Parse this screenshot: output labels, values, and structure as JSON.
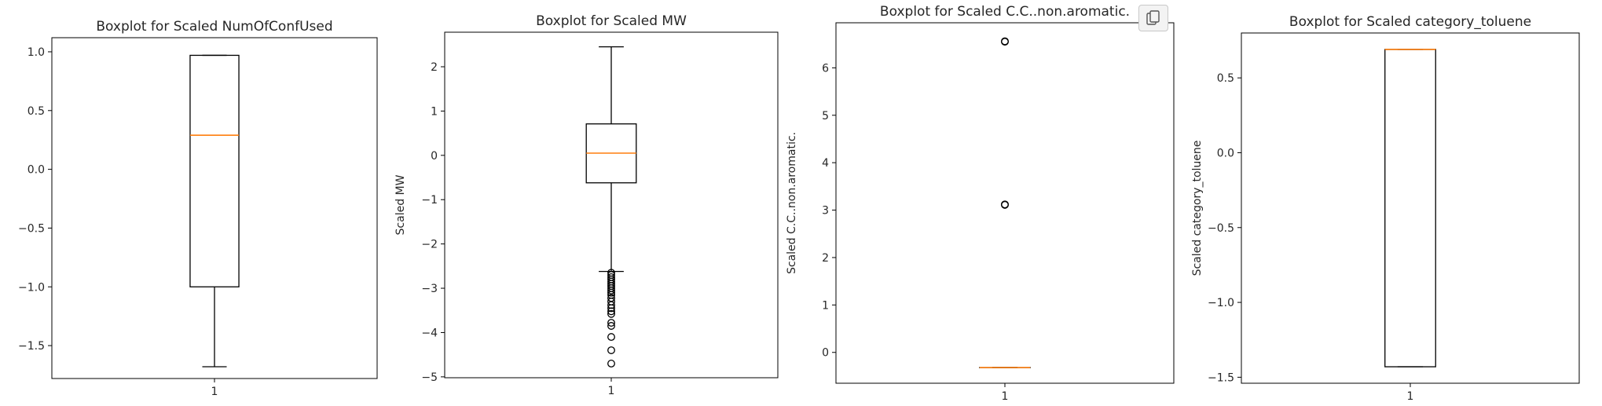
{
  "chart_data": [
    {
      "type": "boxplot",
      "title": "Boxplot for Scaled NumOfConfUsed",
      "xlabel": "",
      "ylabel": "",
      "categories": [
        "1"
      ],
      "ylim": [
        -1.78,
        1.12
      ],
      "yticks": [
        1.0,
        0.5,
        0.0,
        -0.5,
        -1.0,
        -1.5
      ],
      "ytick_labels": [
        "1.0",
        "0.5",
        "0.0",
        "−0.5",
        "−1.0",
        "−1.5"
      ],
      "box": {
        "whisker_low": -1.68,
        "q1": -1.0,
        "median": 0.29,
        "q3": 0.97,
        "whisker_high": 0.97
      },
      "outliers": []
    },
    {
      "type": "boxplot",
      "title": "Boxplot for Scaled MW",
      "xlabel": "",
      "ylabel": "Scaled MW",
      "categories": [
        "1"
      ],
      "ylim": [
        -5.02,
        2.78
      ],
      "yticks": [
        2,
        1,
        0,
        -1,
        -2,
        -3,
        -4,
        -5
      ],
      "ytick_labels": [
        "2",
        "1",
        "0",
        "−1",
        "−2",
        "−3",
        "−4",
        "−5"
      ],
      "box": {
        "whisker_low": -2.62,
        "q1": -0.62,
        "median": 0.05,
        "q3": 0.71,
        "whisker_high": 2.45
      },
      "outliers": [
        -2.65,
        -2.7,
        -2.75,
        -2.8,
        -2.85,
        -2.9,
        -2.95,
        -3.0,
        -3.05,
        -3.1,
        -3.15,
        -3.22,
        -3.3,
        -3.38,
        -3.45,
        -3.52,
        -3.58,
        -3.78,
        -3.85,
        -4.1,
        -4.4,
        -4.7
      ]
    },
    {
      "type": "boxplot",
      "title": "Boxplot for Scaled C.C..non.aromatic.",
      "xlabel": "",
      "ylabel": "Scaled C.C..non.aromatic.",
      "categories": [
        "1"
      ],
      "ylim": [
        -0.65,
        6.95
      ],
      "yticks": [
        6,
        5,
        4,
        3,
        2,
        1,
        0
      ],
      "ytick_labels": [
        "6",
        "5",
        "4",
        "3",
        "2",
        "1",
        "0"
      ],
      "box": {
        "whisker_low": -0.32,
        "q1": -0.32,
        "median": -0.32,
        "q3": -0.32,
        "whisker_high": -0.32
      },
      "outliers": [
        3.11,
        3.12,
        6.55,
        6.56
      ]
    },
    {
      "type": "boxplot",
      "title": "Boxplot for Scaled category_toluene",
      "xlabel": "",
      "ylabel": "Scaled category_toluene",
      "categories": [
        "1"
      ],
      "ylim": [
        -1.54,
        0.8
      ],
      "yticks": [
        0.5,
        0.0,
        -0.5,
        -1.0,
        -1.5
      ],
      "ytick_labels": [
        "0.5",
        "0.0",
        "−0.5",
        "−1.0",
        "−1.5"
      ],
      "box": {
        "whisker_low": -1.43,
        "q1": -1.43,
        "median": 0.69,
        "q3": 0.69,
        "whisker_high": 0.69
      },
      "outliers": []
    }
  ],
  "colors": {
    "median": "#ff7f0e",
    "ink": "#000000",
    "text": "#262626"
  },
  "copy_icon": "copy-icon"
}
